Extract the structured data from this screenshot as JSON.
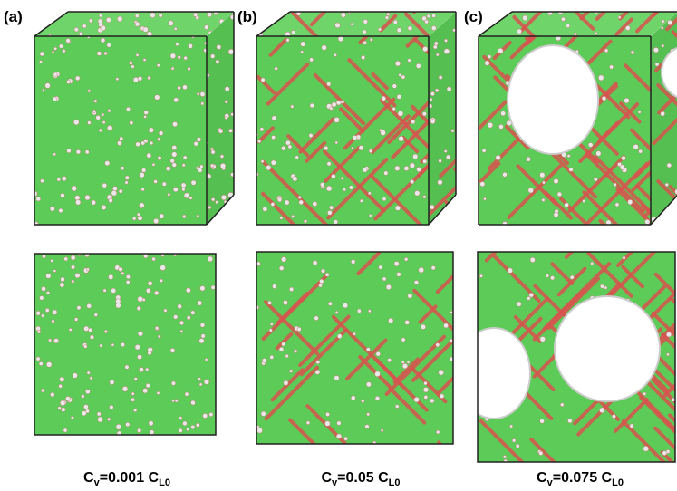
{
  "panels": [
    {
      "label": "(a)",
      "caption": {
        "symbol": "C",
        "symbol_sub": "v",
        "text": "=0.001 C",
        "text_sub": "L0"
      }
    },
    {
      "label": "(b)",
      "caption": {
        "symbol": "C",
        "symbol_sub": "v",
        "text": "=0.05 C",
        "text_sub": "L0"
      }
    },
    {
      "label": "(c)",
      "caption": {
        "symbol": "C",
        "symbol_sub": "v",
        "text": "=0.075 C",
        "text_sub": "L0"
      }
    }
  ]
}
